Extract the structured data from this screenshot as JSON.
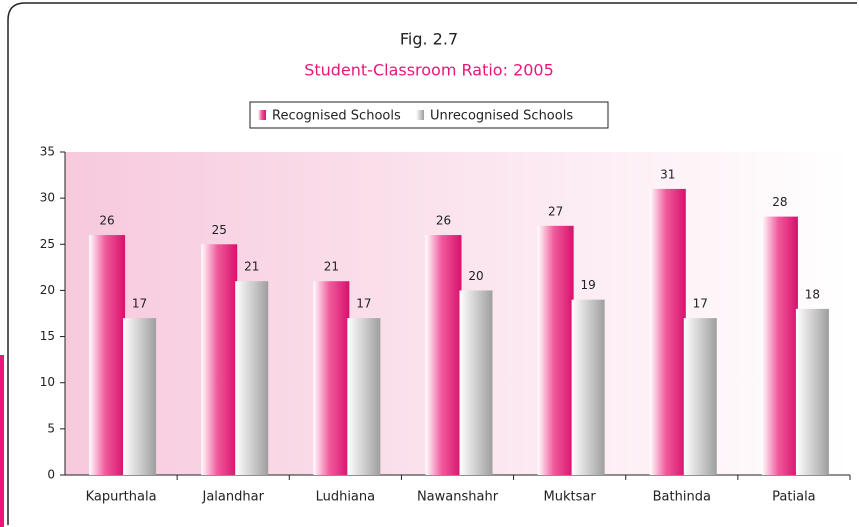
{
  "chart_data": {
    "type": "bar",
    "title": "Fig. 2.7",
    "subtitle": "Student-Classroom Ratio: 2005",
    "categories": [
      "Kapurthala",
      "Jalandhar",
      "Ludhiana",
      "Nawanshahr",
      "Muktsar",
      "Bathinda",
      "Patiala"
    ],
    "series": [
      {
        "name": "Recognised Schools",
        "color": "#e8177a",
        "values": [
          26,
          25,
          21,
          26,
          27,
          31,
          28
        ]
      },
      {
        "name": "Unrecognised Schools",
        "color": "#b4b4b4",
        "values": [
          17,
          21,
          17,
          20,
          19,
          17,
          18
        ]
      }
    ],
    "ylim": [
      0,
      35
    ],
    "yticks": [
      0,
      5,
      10,
      15,
      20,
      25,
      30,
      35
    ]
  }
}
